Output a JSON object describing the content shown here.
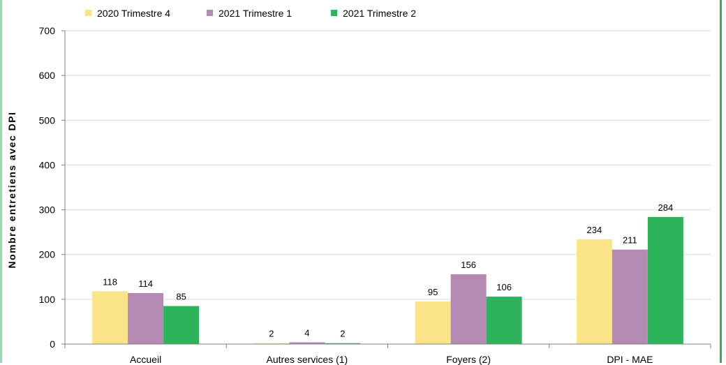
{
  "chart_data": {
    "type": "bar",
    "title": "",
    "xlabel": "",
    "ylabel": "Nombre entretiens avec DPI",
    "categories": [
      "Accueil",
      "Autres services (1)",
      "Foyers (2)",
      "DPI - MAE"
    ],
    "series": [
      {
        "name": "2020 Trimestre 4",
        "color": "#fbe389",
        "values": [
          118,
          2,
          95,
          234
        ]
      },
      {
        "name": "2021 Trimestre 1",
        "color": "#b48ab5",
        "values": [
          114,
          4,
          156,
          211
        ]
      },
      {
        "name": "2021 Trimestre 2",
        "color": "#2db45a",
        "values": [
          85,
          2,
          106,
          284
        ]
      }
    ],
    "ylim": [
      0,
      700
    ],
    "yticks": [
      0,
      100,
      200,
      300,
      400,
      500,
      600,
      700
    ],
    "grid": true,
    "legend": "top-left"
  }
}
